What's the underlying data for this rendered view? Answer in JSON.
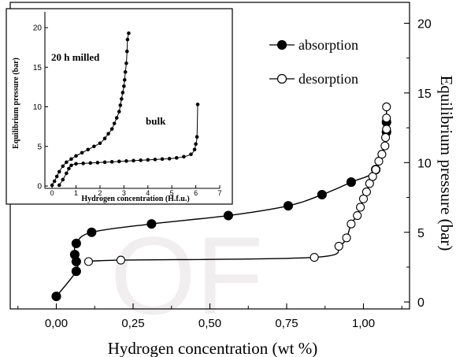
{
  "watermark": "OF",
  "chart_data": [
    {
      "id": "main",
      "type": "scatter",
      "xlabel": "Hydrogen concentration (wt %)",
      "ylabel": "Equilibrium pressure (bar)",
      "xlim": [
        -0.15,
        1.15
      ],
      "ylim": [
        -0.5,
        21.5
      ],
      "xticks": [
        0.0,
        0.25,
        0.5,
        0.75,
        1.0
      ],
      "xtick_labels": [
        "0,00",
        "0,25",
        "0,50",
        "0,75",
        "1,00"
      ],
      "yticks": [
        0,
        5,
        10,
        15,
        20
      ],
      "ytick_labels": [
        "0",
        "5",
        "10",
        "15",
        "20"
      ],
      "legend_position": "top-right",
      "series": [
        {
          "name": "absorption",
          "marker": "filled-circle",
          "color": "#000000",
          "points": [
            [
              0.0,
              0.4
            ],
            [
              0.065,
              2.2
            ],
            [
              0.065,
              2.9
            ],
            [
              0.06,
              3.4
            ],
            [
              0.065,
              4.2
            ],
            [
              0.115,
              5.0
            ],
            [
              0.31,
              5.6
            ],
            [
              0.56,
              6.2
            ],
            [
              0.755,
              6.9
            ],
            [
              0.865,
              7.7
            ],
            [
              0.96,
              8.6
            ],
            [
              1.04,
              9.5
            ],
            [
              1.075,
              12.2
            ],
            [
              1.075,
              12.9
            ]
          ]
        },
        {
          "name": "desorption",
          "marker": "open-circle",
          "color": "#000000",
          "points": [
            [
              0.105,
              2.9
            ],
            [
              0.21,
              3.0
            ],
            [
              0.84,
              3.2
            ],
            [
              0.92,
              4.0
            ],
            [
              0.945,
              4.6
            ],
            [
              0.96,
              5.6
            ],
            [
              0.98,
              6.2
            ],
            [
              0.99,
              6.8
            ],
            [
              1.0,
              7.4
            ],
            [
              1.01,
              7.9
            ],
            [
              1.02,
              8.5
            ],
            [
              1.03,
              9.0
            ],
            [
              1.04,
              9.5
            ],
            [
              1.05,
              10.1
            ],
            [
              1.06,
              10.6
            ],
            [
              1.07,
              11.2
            ],
            [
              1.072,
              11.8
            ],
            [
              1.075,
              12.4
            ],
            [
              1.075,
              13.2
            ],
            [
              1.075,
              14.0
            ]
          ]
        }
      ]
    },
    {
      "id": "inset",
      "type": "scatter",
      "xlabel": "Hydrogen concentration (H.f.u.)",
      "ylabel": "Equilibrium pressure (bar)",
      "xlim": [
        -0.3,
        7
      ],
      "ylim": [
        -0.3,
        22
      ],
      "xticks": [
        0,
        1,
        2,
        3,
        4,
        5,
        6,
        7
      ],
      "xtick_labels": [
        "0",
        "1",
        "2",
        "3",
        "4",
        "5",
        "6",
        "7"
      ],
      "yticks": [
        0,
        5,
        10,
        15,
        20
      ],
      "ytick_labels": [
        "0",
        "5",
        "10",
        "15",
        "20"
      ],
      "annotations": [
        "20 h milled",
        "bulk"
      ],
      "series": [
        {
          "name": "20 h milled",
          "marker": "filled-circle",
          "color": "#000000",
          "points": [
            [
              0.0,
              0.1
            ],
            [
              0.1,
              0.6
            ],
            [
              0.2,
              1.2
            ],
            [
              0.3,
              1.8
            ],
            [
              0.45,
              2.5
            ],
            [
              0.6,
              3.0
            ],
            [
              0.8,
              3.4
            ],
            [
              1.0,
              3.8
            ],
            [
              1.25,
              4.2
            ],
            [
              1.5,
              4.6
            ],
            [
              1.75,
              5.0
            ],
            [
              2.0,
              5.4
            ],
            [
              2.2,
              6.0
            ],
            [
              2.35,
              6.6
            ],
            [
              2.5,
              7.2
            ],
            [
              2.6,
              7.9
            ],
            [
              2.7,
              8.6
            ],
            [
              2.8,
              9.4
            ],
            [
              2.85,
              10.2
            ],
            [
              2.9,
              11.0
            ],
            [
              2.95,
              11.8
            ],
            [
              3.0,
              12.6
            ],
            [
              3.03,
              13.4
            ],
            [
              3.06,
              14.4
            ],
            [
              3.1,
              15.5
            ],
            [
              3.13,
              17.0
            ],
            [
              3.15,
              18.5
            ],
            [
              3.2,
              19.3
            ]
          ]
        },
        {
          "name": "bulk",
          "marker": "filled-circle",
          "color": "#000000",
          "points": [
            [
              0.3,
              0.1
            ],
            [
              0.45,
              0.8
            ],
            [
              0.6,
              1.6
            ],
            [
              0.7,
              2.2
            ],
            [
              0.8,
              2.6
            ],
            [
              1.0,
              2.8
            ],
            [
              1.3,
              2.85
            ],
            [
              1.6,
              2.9
            ],
            [
              1.9,
              2.95
            ],
            [
              2.2,
              3.0
            ],
            [
              2.5,
              3.05
            ],
            [
              2.8,
              3.1
            ],
            [
              3.1,
              3.15
            ],
            [
              3.4,
              3.2
            ],
            [
              3.7,
              3.25
            ],
            [
              4.0,
              3.3
            ],
            [
              4.3,
              3.35
            ],
            [
              4.6,
              3.4
            ],
            [
              4.9,
              3.45
            ],
            [
              5.2,
              3.55
            ],
            [
              5.5,
              3.7
            ],
            [
              5.8,
              4.0
            ],
            [
              5.95,
              4.6
            ],
            [
              6.0,
              5.3
            ],
            [
              6.05,
              6.2
            ],
            [
              6.08,
              10.3
            ]
          ]
        }
      ]
    }
  ]
}
